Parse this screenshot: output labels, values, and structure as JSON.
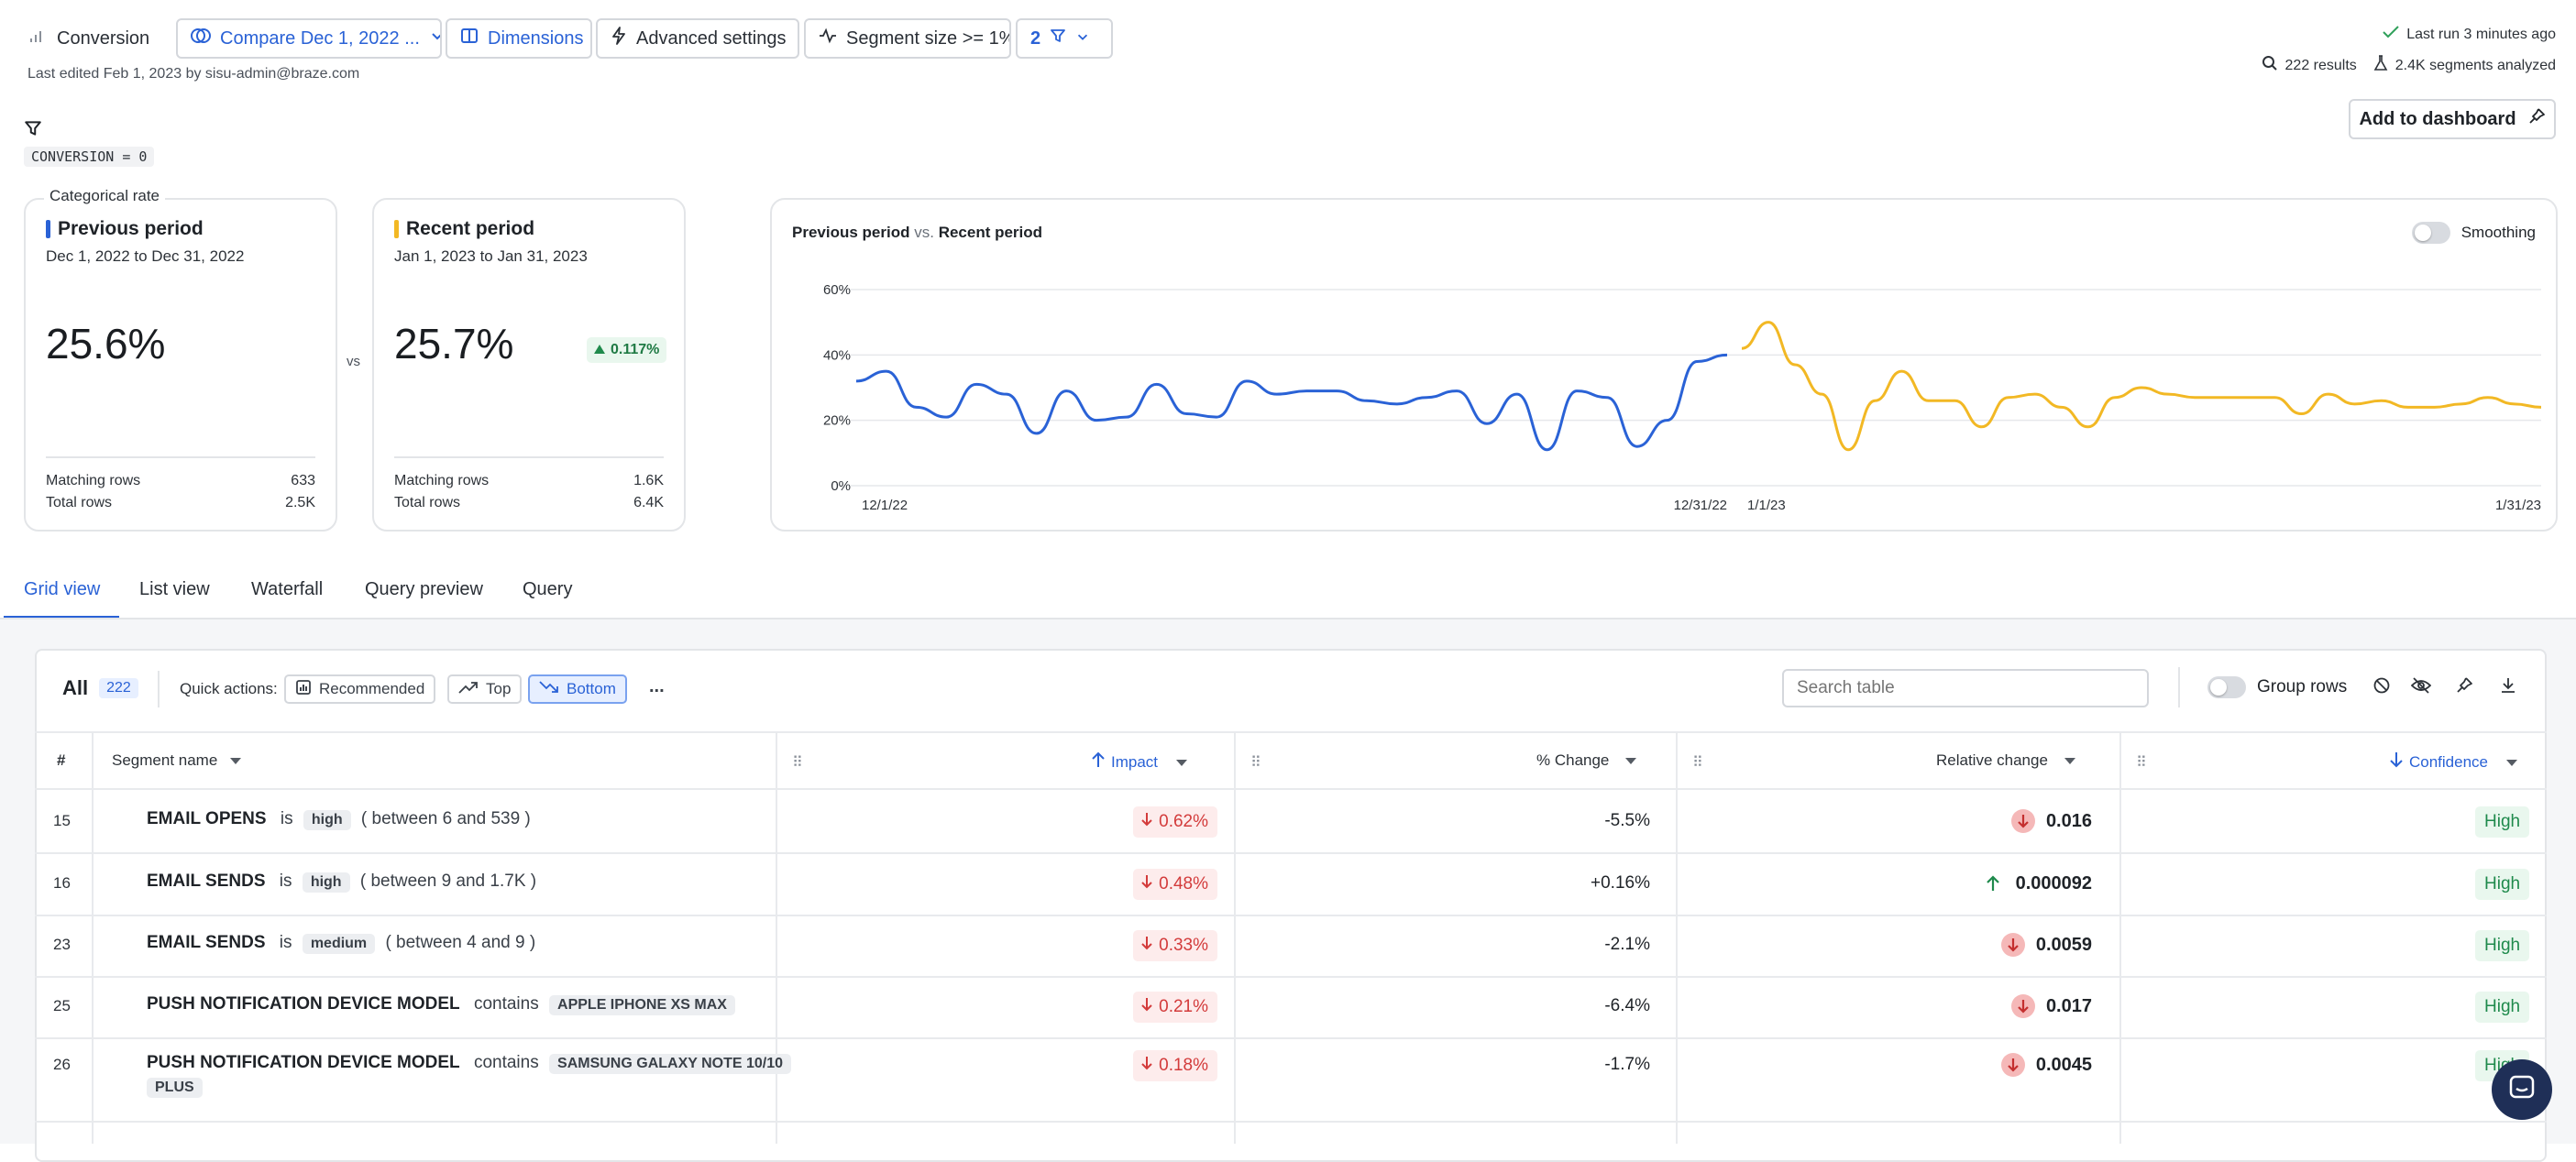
{
  "toolbar": {
    "metric_label": "Conversion",
    "compare_label": "Compare Dec 1, 2022 ...",
    "dimensions_label": "Dimensions",
    "advanced_label": "Advanced settings",
    "segment_size_label": "Segment size >= 1%",
    "filter_count": "2",
    "last_edited": "Last edited Feb 1, 2023 by sisu-admin@braze.com",
    "last_run": "Last run 3 minutes ago",
    "results": "222 results",
    "segments_analyzed": "2.4K segments analyzed",
    "add_dashboard": "Add to dashboard"
  },
  "filter": {
    "expression": "CONVERSION = 0"
  },
  "previous": {
    "badge": "Categorical rate",
    "title": "Previous period",
    "range": "Dec 1, 2022 to Dec 31, 2022",
    "value": "25.6%",
    "matching_label": "Matching rows",
    "matching_value": "633",
    "total_label": "Total rows",
    "total_value": "2.5K",
    "color": "#2a62d6"
  },
  "vs": "vs",
  "recent": {
    "title": "Recent period",
    "range": "Jan 1, 2023 to Jan 31, 2023",
    "value": "25.7%",
    "delta": "0.117%",
    "matching_label": "Matching rows",
    "matching_value": "1.6K",
    "total_label": "Total rows",
    "total_value": "6.4K",
    "color": "#f2b824"
  },
  "chart": {
    "title_a": "Previous period",
    "title_vs": "vs.",
    "title_b": "Recent period",
    "smoothing_label": "Smoothing"
  },
  "chart_data": {
    "type": "line",
    "ylim": [
      0,
      60
    ],
    "yticks": [
      "0%",
      "20%",
      "40%",
      "60%"
    ],
    "series": [
      {
        "name": "Previous period",
        "color": "#2a62d6",
        "x_start_label": "12/1/22",
        "x_end_label": "12/31/22",
        "values": [
          32,
          35,
          24,
          21,
          31,
          28,
          16,
          29,
          20,
          21,
          31,
          22,
          21,
          32,
          28,
          29,
          29,
          26,
          25,
          27,
          29,
          19,
          28,
          11,
          29,
          27,
          12,
          20,
          38,
          40
        ]
      },
      {
        "name": "Recent period",
        "color": "#f2b824",
        "x_start_label": "1/1/23",
        "x_end_label": "1/31/23",
        "values": [
          42,
          50,
          37,
          28,
          11,
          26,
          35,
          26,
          26,
          18,
          27,
          28,
          24,
          18,
          27,
          30,
          28,
          27,
          27,
          27,
          27,
          22,
          28,
          25,
          26,
          24,
          24,
          25,
          27,
          25,
          24
        ]
      }
    ]
  },
  "tabs": [
    "Grid view",
    "List view",
    "Waterfall",
    "Query preview",
    "Query"
  ],
  "table_toolbar": {
    "all_label": "All",
    "all_count": "222",
    "quick_actions_label": "Quick actions:",
    "recommended": "Recommended",
    "top": "Top",
    "bottom": "Bottom",
    "more": "...",
    "search_placeholder": "Search table",
    "group_rows": "Group rows"
  },
  "columns": {
    "num": "#",
    "segment": "Segment name",
    "impact": "Impact",
    "pct_change": "% Change",
    "relative": "Relative change",
    "confidence": "Confidence"
  },
  "rows": [
    {
      "num": "15",
      "name": "EMAIL OPENS",
      "op": "is",
      "tag": "high",
      "extra": "( between 6 and 539 )",
      "impact": "0.62%",
      "pct": "-5.5%",
      "rel": "0.016",
      "rel_dir": "down",
      "conf": "High"
    },
    {
      "num": "16",
      "name": "EMAIL SENDS",
      "op": "is",
      "tag": "high",
      "extra": "( between 9 and 1.7K )",
      "impact": "0.48%",
      "pct": "+0.16%",
      "rel": "0.000092",
      "rel_dir": "up",
      "conf": "High"
    },
    {
      "num": "23",
      "name": "EMAIL SENDS",
      "op": "is",
      "tag": "medium",
      "extra": "( between 4 and 9 )",
      "impact": "0.33%",
      "pct": "-2.1%",
      "rel": "0.0059",
      "rel_dir": "down",
      "conf": "High"
    },
    {
      "num": "25",
      "name": "PUSH NOTIFICATION DEVICE MODEL",
      "op": "contains",
      "tag": "APPLE IPHONE XS MAX",
      "extra": "",
      "impact": "0.21%",
      "pct": "-6.4%",
      "rel": "0.017",
      "rel_dir": "down",
      "conf": "High"
    },
    {
      "num": "26",
      "name": "PUSH NOTIFICATION DEVICE MODEL",
      "op": "contains",
      "tag": "SAMSUNG GALAXY NOTE 10/10",
      "extra": "PLUS",
      "impact": "0.18%",
      "pct": "-1.7%",
      "rel": "0.0045",
      "rel_dir": "down",
      "conf": "High"
    }
  ]
}
